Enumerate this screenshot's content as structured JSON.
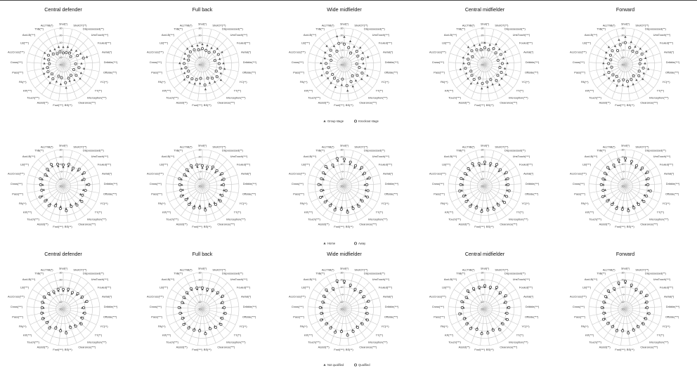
{
  "figure": {
    "row_titles": [
      [
        "Central defender",
        "Full back",
        "Wide midfielder",
        "Central midfielder",
        "Forward"
      ],
      [
        "",
        "",
        "",
        "",
        ""
      ],
      [
        "Central defender",
        "Full back",
        "Wide midfielder",
        "Central midfielder",
        "Forward"
      ]
    ],
    "legends": [
      [
        {
          "label": "Group stage",
          "marker": "triangle"
        },
        {
          "label": "Knockout stage",
          "marker": "circle"
        }
      ],
      [
        {
          "label": "Home",
          "marker": "triangle"
        },
        {
          "label": "Away",
          "marker": "circle"
        }
      ],
      [
        {
          "label": "Not qualified",
          "marker": "triangle"
        },
        {
          "label": "Qualified",
          "marker": "circle"
        }
      ]
    ],
    "colors": {
      "grid": "#c8c8c8",
      "marker": "#555555",
      "text": "#333333"
    }
  },
  "chart_data": {
    "type": "radar",
    "grid": true,
    "ticks": [
      "-20",
      "-10",
      "0",
      "10",
      "20",
      "30"
    ],
    "axes": [
      "Shot(*)",
      "ShotOT(**)",
      "Dispossessed(**)",
      "UnsTouch(***)",
      "Fouled(***)",
      "Aerial(*)",
      "Dribble(***)",
      "Offside(***)",
      "YC(**)",
      "TT(**)",
      "Interception(***)",
      "Clearance(***)",
      "BS(**)",
      "Foul(***)",
      "Assist(**)",
      "Touch(***)",
      "KP(***)",
      "PA(**)",
      "Pass(***)",
      "Cross(***)",
      "AccCross(***)",
      "LB(***)",
      "AccLB(***)",
      "ThB(**)",
      "AccThB(*)"
    ],
    "charts": [
      {
        "row": 0,
        "col": 0,
        "title": "Central defender",
        "series": [
          {
            "name": "Group stage",
            "values": [
              4,
              5,
              3,
              6,
              8,
              14,
              5,
              9,
              7,
              10,
              6,
              4,
              12,
              7,
              5,
              11,
              6,
              9,
              8,
              6,
              7,
              10,
              6,
              4,
              5
            ]
          },
          {
            "name": "Knockout stage",
            "values": [
              -4,
              -3,
              -2,
              -5,
              3,
              9,
              -3,
              2,
              -4,
              3,
              -2,
              0,
              5,
              -2,
              -3,
              4,
              0,
              3,
              2,
              -1,
              1,
              4,
              0,
              -3,
              -2
            ]
          }
        ]
      },
      {
        "row": 0,
        "col": 1,
        "title": "Full back",
        "series": [
          {
            "name": "Group stage",
            "values": [
              8,
              7,
              6,
              10,
              12,
              5,
              9,
              11,
              8,
              13,
              9,
              7,
              14,
              6,
              8,
              10,
              12,
              7,
              9,
              11,
              6,
              8,
              10,
              9,
              7
            ]
          },
          {
            "name": "Knockout stage",
            "values": [
              2,
              0,
              -1,
              4,
              6,
              -2,
              3,
              5,
              1,
              6,
              3,
              0,
              8,
              -1,
              2,
              4,
              6,
              1,
              3,
              5,
              0,
              2,
              4,
              3,
              1
            ]
          }
        ]
      },
      {
        "row": 0,
        "col": 2,
        "title": "Wide midfielder",
        "series": [
          {
            "name": "Group stage",
            "values": [
              18,
              13,
              8,
              12,
              10,
              14,
              6,
              9,
              15,
              11,
              7,
              12,
              16,
              8,
              13,
              11,
              9,
              14,
              10,
              12,
              8,
              11,
              15,
              9,
              20
            ]
          },
          {
            "name": "Knockout stage",
            "values": [
              8,
              4,
              -2,
              5,
              2,
              6,
              -3,
              1,
              7,
              3,
              -1,
              5,
              9,
              0,
              4,
              3,
              1,
              6,
              2,
              5,
              -1,
              3,
              7,
              1,
              10
            ]
          }
        ]
      },
      {
        "row": 0,
        "col": 3,
        "title": "Central midfielder",
        "series": [
          {
            "name": "Group stage",
            "values": [
              10,
              8,
              12,
              9,
              13,
              7,
              11,
              8,
              12,
              10,
              14,
              9,
              11,
              13,
              7,
              12,
              10,
              8,
              14,
              9,
              11,
              7,
              13,
              10,
              8
            ]
          },
          {
            "name": "Knockout stage",
            "values": [
              3,
              1,
              5,
              2,
              6,
              -1,
              4,
              1,
              5,
              3,
              7,
              2,
              4,
              6,
              0,
              5,
              3,
              1,
              7,
              2,
              4,
              0,
              6,
              3,
              1
            ]
          }
        ]
      },
      {
        "row": 0,
        "col": 4,
        "title": "Forward",
        "series": [
          {
            "name": "Group stage",
            "values": [
              18,
              12,
              8,
              10,
              14,
              9,
              7,
              12,
              8,
              11,
              6,
              9,
              10,
              8,
              11,
              7,
              9,
              12,
              6,
              10,
              8,
              11,
              13,
              9,
              15
            ]
          },
          {
            "name": "Knockout stage",
            "values": [
              10,
              4,
              1,
              3,
              7,
              2,
              0,
              5,
              1,
              4,
              -1,
              2,
              3,
              1,
              4,
              0,
              2,
              5,
              -1,
              3,
              1,
              4,
              6,
              2,
              8
            ]
          }
        ]
      },
      {
        "row": 1,
        "col": 0,
        "title": "",
        "series": [
          {
            "name": "Home",
            "values": [
              6,
              8,
              5,
              9,
              11,
              7,
              12,
              8,
              6,
              10,
              9,
              7,
              11,
              8,
              6,
              10,
              9,
              12,
              7,
              8,
              10,
              6,
              9,
              11,
              8
            ]
          },
          {
            "name": "Away",
            "values": [
              9,
              11,
              8,
              12,
              14,
              10,
              15,
              11,
              9,
              13,
              12,
              10,
              14,
              11,
              9,
              13,
              12,
              15,
              10,
              11,
              13,
              9,
              12,
              14,
              11
            ]
          }
        ]
      },
      {
        "row": 1,
        "col": 1,
        "title": "",
        "series": [
          {
            "name": "Home",
            "values": [
              5,
              4,
              7,
              6,
              9,
              8,
              6,
              10,
              7,
              9,
              8,
              6,
              10,
              7,
              9,
              8,
              6,
              9,
              7,
              8,
              10,
              6,
              8,
              9,
              7
            ]
          },
          {
            "name": "Away",
            "values": [
              8,
              7,
              10,
              9,
              12,
              11,
              9,
              13,
              10,
              12,
              11,
              9,
              13,
              10,
              12,
              11,
              9,
              12,
              10,
              11,
              13,
              9,
              11,
              12,
              10
            ]
          }
        ]
      },
      {
        "row": 1,
        "col": 2,
        "title": "",
        "series": [
          {
            "name": "Home",
            "values": [
              14,
              11,
              9,
              12,
              10,
              13,
              8,
              10,
              12,
              9,
              11,
              10,
              13,
              9,
              12,
              10,
              11,
              13,
              9,
              12,
              10,
              11,
              14,
              10,
              16
            ]
          },
          {
            "name": "Away",
            "values": [
              17,
              14,
              12,
              15,
              13,
              16,
              11,
              13,
              15,
              12,
              14,
              13,
              16,
              12,
              15,
              13,
              14,
              16,
              12,
              15,
              13,
              14,
              17,
              13,
              19
            ]
          }
        ]
      },
      {
        "row": 1,
        "col": 3,
        "title": "",
        "series": [
          {
            "name": "Home",
            "values": [
              10,
              9,
              11,
              8,
              12,
              10,
              9,
              11,
              10,
              12,
              9,
              11,
              10,
              12,
              9,
              11,
              10,
              9,
              12,
              10,
              11,
              9,
              10,
              12,
              9
            ]
          },
          {
            "name": "Away",
            "values": [
              13,
              12,
              14,
              11,
              15,
              13,
              12,
              14,
              13,
              15,
              12,
              14,
              13,
              15,
              12,
              14,
              13,
              12,
              15,
              13,
              14,
              12,
              13,
              15,
              12
            ]
          }
        ]
      },
      {
        "row": 1,
        "col": 4,
        "title": "",
        "series": [
          {
            "name": "Home",
            "values": [
              15,
              12,
              9,
              11,
              13,
              10,
              8,
              12,
              9,
              10,
              8,
              9,
              11,
              9,
              10,
              8,
              9,
              11,
              8,
              10,
              9,
              10,
              12,
              10,
              14
            ]
          },
          {
            "name": "Away",
            "values": [
              18,
              15,
              12,
              14,
              16,
              13,
              11,
              15,
              12,
              13,
              11,
              12,
              14,
              12,
              13,
              11,
              12,
              14,
              11,
              13,
              12,
              13,
              15,
              13,
              17
            ]
          }
        ]
      },
      {
        "row": 2,
        "col": 0,
        "title": "Central defender",
        "series": [
          {
            "name": "Not qualified",
            "values": [
              5,
              6,
              4,
              7,
              9,
              12,
              6,
              8,
              7,
              10,
              7,
              5,
              11,
              8,
              6,
              10,
              7,
              9,
              8,
              7,
              8,
              9,
              7,
              5,
              6
            ]
          },
          {
            "name": "Qualified",
            "values": [
              7,
              8,
              6,
              9,
              11,
              14,
              8,
              10,
              9,
              12,
              9,
              7,
              13,
              10,
              8,
              12,
              9,
              11,
              10,
              9,
              10,
              11,
              9,
              7,
              8
            ]
          }
        ]
      },
      {
        "row": 2,
        "col": 1,
        "title": "Full back",
        "series": [
          {
            "name": "Not qualified",
            "values": [
              7,
              6,
              8,
              9,
              11,
              7,
              8,
              10,
              8,
              11,
              9,
              7,
              12,
              8,
              9,
              10,
              11,
              8,
              9,
              10,
              7,
              8,
              9,
              10,
              8
            ]
          },
          {
            "name": "Qualified",
            "values": [
              9,
              8,
              10,
              11,
              13,
              9,
              10,
              12,
              10,
              13,
              11,
              9,
              14,
              10,
              11,
              12,
              13,
              10,
              11,
              12,
              9,
              10,
              11,
              12,
              10
            ]
          }
        ]
      },
      {
        "row": 2,
        "col": 2,
        "title": "Wide midfielder",
        "series": [
          {
            "name": "Not qualified",
            "values": [
              16,
              12,
              9,
              11,
              10,
              13,
              8,
              10,
              13,
              10,
              9,
              11,
              14,
              9,
              12,
              10,
              10,
              13,
              10,
              11,
              9,
              11,
              14,
              10,
              18
            ]
          },
          {
            "name": "Qualified",
            "values": [
              18,
              14,
              11,
              13,
              12,
              15,
              10,
              12,
              15,
              12,
              11,
              13,
              16,
              11,
              14,
              12,
              12,
              15,
              12,
              13,
              11,
              13,
              16,
              12,
              20
            ]
          }
        ]
      },
      {
        "row": 2,
        "col": 3,
        "title": "Central midfielder",
        "series": [
          {
            "name": "Not qualified",
            "values": [
              10,
              9,
              12,
              9,
              12,
              8,
              11,
              9,
              12,
              10,
              13,
              9,
              11,
              12,
              8,
              11,
              10,
              9,
              13,
              9,
              11,
              8,
              12,
              10,
              9
            ]
          },
          {
            "name": "Qualified",
            "values": [
              12,
              11,
              14,
              11,
              14,
              10,
              13,
              11,
              14,
              12,
              15,
              11,
              13,
              14,
              10,
              13,
              12,
              11,
              15,
              11,
              13,
              10,
              14,
              12,
              11
            ]
          }
        ]
      },
      {
        "row": 2,
        "col": 4,
        "title": "Forward",
        "series": [
          {
            "name": "Not qualified",
            "values": [
              16,
              12,
              9,
              10,
              13,
              9,
              8,
              11,
              9,
              10,
              8,
              9,
              11,
              8,
              10,
              8,
              9,
              11,
              8,
              10,
              9,
              10,
              12,
              10,
              15
            ]
          },
          {
            "name": "Qualified",
            "values": [
              18,
              14,
              11,
              12,
              15,
              11,
              10,
              13,
              11,
              12,
              10,
              11,
              13,
              10,
              12,
              10,
              11,
              13,
              10,
              12,
              11,
              12,
              14,
              12,
              17
            ]
          }
        ]
      }
    ]
  }
}
